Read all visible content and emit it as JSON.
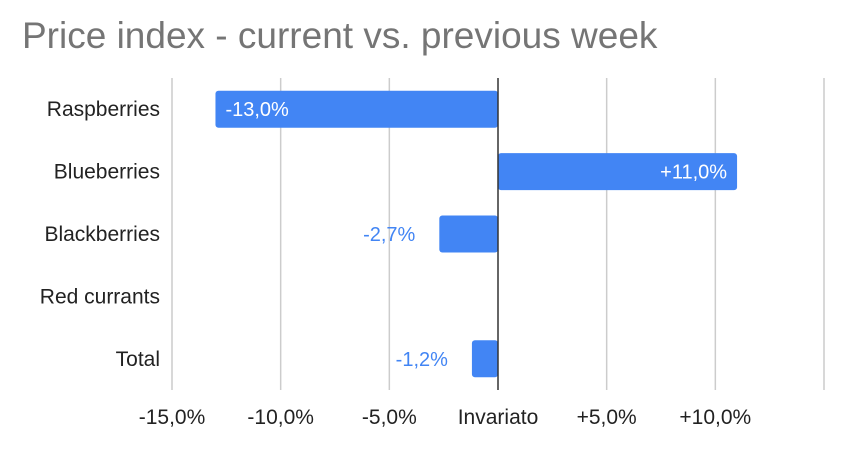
{
  "chart_data": {
    "type": "bar",
    "orientation": "horizontal",
    "title": "Price index - current vs. previous week",
    "categories": [
      "Raspberries",
      "Blueberries",
      "Blackberries",
      "Red currants",
      "Total"
    ],
    "values": [
      -13.0,
      11.0,
      -2.7,
      null,
      -1.2
    ],
    "data_labels": [
      "-13,0%",
      "+11,0%",
      "-2,7%",
      "",
      "-1,2%"
    ],
    "xlim": [
      -15,
      15
    ],
    "x_ticks": [
      -15,
      -10,
      -5,
      0,
      5,
      10
    ],
    "x_tick_labels": [
      "-15,0%",
      "-10,0%",
      "-5,0%",
      "Invariato",
      "+5,0%",
      "+10,0%"
    ],
    "grid": true,
    "legend": "none",
    "colors": {
      "bar": "#4285f4",
      "label_inside": "#ffffff",
      "label_outside": "#4285f4",
      "gridline": "#cccccc",
      "zero_line": "#333333",
      "title": "#757575"
    }
  }
}
